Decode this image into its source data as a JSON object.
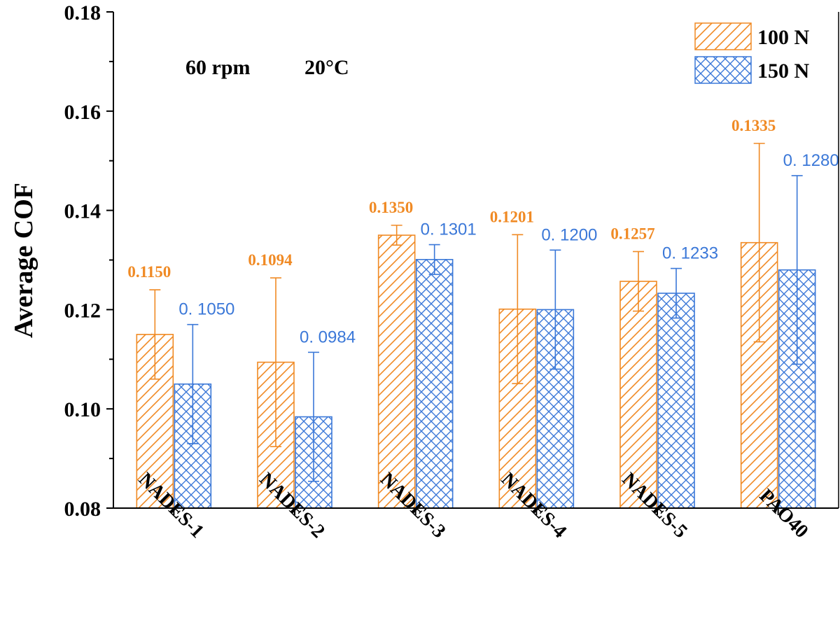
{
  "chart_data": {
    "type": "bar",
    "title": "",
    "xlabel": "",
    "ylabel": "Average COF",
    "ylim": [
      0.08,
      0.18
    ],
    "yticks": [
      "0.08",
      "0.10",
      "0.12",
      "0.14",
      "0.16",
      "0.18"
    ],
    "categories": [
      "NADES-1",
      "NADES-2",
      "NADES-3",
      "NADES-4",
      "NADES-5",
      "PAO40"
    ],
    "annotation": {
      "speed": "60 rpm",
      "temperature": "20°C"
    },
    "legend_position": "top-right",
    "series": [
      {
        "name": "100 N",
        "color": "#F08A24",
        "pattern": "diagonal-hatch",
        "values": [
          0.115,
          0.1094,
          0.135,
          0.1201,
          0.1257,
          0.1335
        ],
        "errors": [
          0.009,
          0.017,
          0.002,
          0.015,
          0.006,
          0.02
        ],
        "labels": [
          "0.1150",
          "0.1094",
          "0.1350",
          "0.1201",
          "0.1257",
          "0.1335"
        ]
      },
      {
        "name": "150 N",
        "color": "#3B78D8",
        "pattern": "cross-hatch",
        "values": [
          0.105,
          0.0984,
          0.1301,
          0.12,
          0.1233,
          0.128
        ],
        "errors": [
          0.012,
          0.013,
          0.003,
          0.012,
          0.005,
          0.019
        ],
        "labels": [
          "0. 1050",
          "0. 0984",
          "0. 1301",
          "0. 1200",
          "0. 1233",
          "0. 1280"
        ]
      }
    ]
  }
}
